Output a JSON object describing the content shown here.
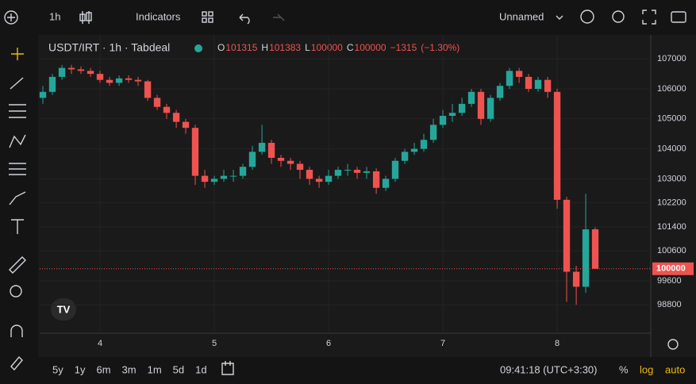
{
  "toolbar": {
    "interval": "1h",
    "indicators": "Indicators",
    "layout_name": "Unnamed"
  },
  "chart_data": {
    "type": "candlestick",
    "title": "USDT/IRT · 1h · Tabdeal",
    "ohlc_labels": [
      "O",
      "H",
      "L",
      "C"
    ],
    "change": "−1315",
    "change_pct": "(−1.30%)",
    "up_color": "#26a69a",
    "down_color": "#ef5350",
    "x": [
      3.5,
      3.583,
      3.667,
      3.75,
      3.833,
      3.917,
      4,
      4.083,
      4.167,
      4.25,
      4.333,
      4.417,
      4.5,
      4.583,
      4.667,
      4.75,
      4.833,
      4.917,
      5,
      5.083,
      5.167,
      5.25,
      5.333,
      5.417,
      5.5,
      5.583,
      5.667,
      5.75,
      5.833,
      5.917,
      6,
      6.083,
      6.167,
      6.25,
      6.333,
      6.417,
      6.5,
      6.583,
      6.667,
      6.75,
      6.833,
      6.917,
      7,
      7.083,
      7.167,
      7.25,
      7.333,
      7.417,
      7.5,
      7.583,
      7.667,
      7.75,
      7.833,
      7.917,
      8,
      8.083,
      8.167,
      8.25,
      8.333
    ],
    "open": [
      105700,
      105900,
      106400,
      106700,
      106650,
      106600,
      106500,
      106300,
      106200,
      106350,
      106300,
      106250,
      105700,
      105400,
      105200,
      104900,
      104700,
      103100,
      102900,
      103000,
      103100,
      103100,
      103400,
      103900,
      104200,
      103700,
      103600,
      103500,
      103300,
      103000,
      102900,
      103100,
      103300,
      103300,
      103200,
      103250,
      102700,
      103000,
      103600,
      103900,
      104000,
      104300,
      104800,
      105100,
      105200,
      105500,
      105900,
      105000,
      105700,
      106100,
      106600,
      106400,
      106000,
      106300,
      105900,
      102300,
      99900,
      99400,
      101315
    ],
    "high": [
      106100,
      106500,
      106800,
      106800,
      106750,
      106700,
      106600,
      106400,
      106450,
      106450,
      106400,
      106300,
      105800,
      105500,
      105300,
      105000,
      104800,
      103300,
      103100,
      103300,
      103300,
      103500,
      104100,
      104800,
      104300,
      103800,
      103700,
      103600,
      103400,
      103100,
      103300,
      103400,
      103500,
      103400,
      103400,
      103350,
      103100,
      103700,
      104000,
      104200,
      104500,
      105000,
      105300,
      105500,
      105700,
      106000,
      106000,
      105800,
      106200,
      106700,
      106700,
      106500,
      106400,
      106400,
      106000,
      102400,
      100100,
      102500,
      101383
    ],
    "low": [
      105500,
      105800,
      106300,
      106500,
      106500,
      106400,
      106200,
      106100,
      106100,
      106200,
      106100,
      105600,
      105300,
      105000,
      104700,
      104500,
      102800,
      102700,
      102800,
      102900,
      102900,
      103000,
      103300,
      103800,
      103500,
      103400,
      103300,
      103000,
      102800,
      102700,
      102800,
      103000,
      103100,
      103000,
      103000,
      102500,
      102600,
      102900,
      103500,
      103800,
      103900,
      104200,
      104700,
      104900,
      105100,
      105400,
      104800,
      104900,
      105600,
      106000,
      106200,
      105900,
      105900,
      105700,
      102000,
      98900,
      98800,
      99200,
      100000
    ],
    "close": [
      105900,
      106400,
      106700,
      106650,
      106600,
      106500,
      106300,
      106200,
      106350,
      106300,
      106250,
      105700,
      105400,
      105200,
      104900,
      104700,
      103100,
      102900,
      103000,
      103100,
      103100,
      103400,
      103900,
      104200,
      103700,
      103600,
      103500,
      103300,
      103000,
      102900,
      103100,
      103300,
      103300,
      103200,
      103250,
      102700,
      103000,
      103600,
      103900,
      104000,
      104300,
      104800,
      105100,
      105200,
      105500,
      105900,
      105000,
      105700,
      106100,
      106600,
      106400,
      106000,
      106300,
      105900,
      102300,
      99900,
      99400,
      101315,
      100000
    ],
    "xlim": [
      3.472,
      8.819
    ],
    "xticks": [
      4,
      5,
      6,
      7,
      8
    ],
    "ylim": [
      97850,
      107800
    ],
    "yticks": [
      107000,
      106000,
      105000,
      104000,
      103000,
      102200,
      101400,
      100600,
      99600,
      98800
    ],
    "grid": true,
    "price_line": true
  },
  "bottom_bar": {
    "ranges": [
      "5y",
      "1y",
      "6m",
      "3m",
      "1m",
      "5d",
      "1d"
    ],
    "time": "09:41:18 (UTC+3:30)",
    "percent": "%",
    "log": "log",
    "auto": "auto"
  }
}
